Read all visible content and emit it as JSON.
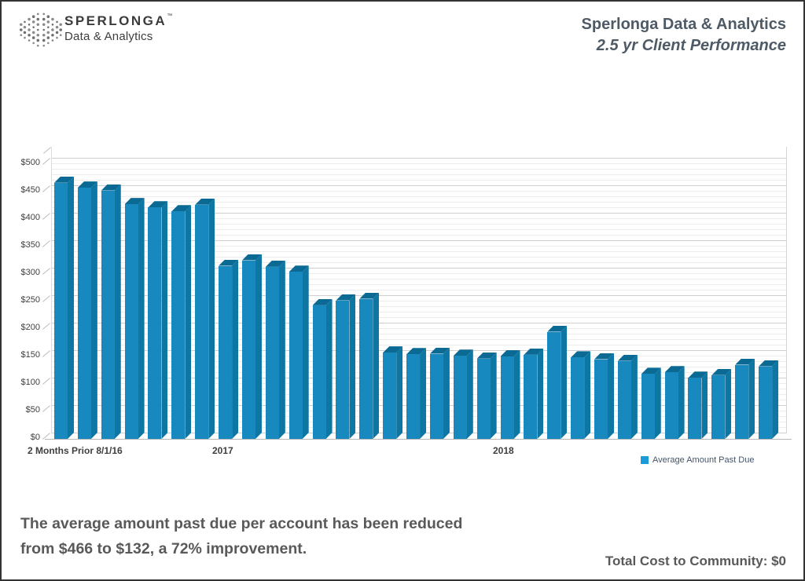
{
  "header": {
    "logo": {
      "brand": "SPERLONGA",
      "trademark": "™",
      "tagline": "Data & Analytics"
    },
    "title_line1": "Sperlonga Data & Analytics",
    "title_line2": "2.5 yr Client Performance"
  },
  "chart_data": {
    "type": "bar",
    "style": "3d",
    "title": "2.5 yr Client Performance",
    "xlabel": "",
    "ylabel": "",
    "ylim": [
      0,
      500
    ],
    "y_major_step": 50,
    "y_minor_step": 10,
    "grid": "horizontal, minor every $10, major every $50",
    "y_tick_labels": [
      "$0",
      "$50",
      "$100",
      "$150",
      "$200",
      "$250",
      "$300",
      "$350",
      "$400",
      "$450",
      "$500"
    ],
    "x_axis_group_labels": [
      "2 Months Prior 8/1/16",
      "2017",
      "2018"
    ],
    "legend_position": "bottom-right",
    "legend": [
      {
        "label": "Average Amount Past Due",
        "swatch_color": "#1B9CD9"
      }
    ],
    "bar_colors": {
      "front": "#1789BE",
      "top": "#0B6A94",
      "side": "#0E76A3"
    },
    "series": [
      {
        "name": "Average Amount Past Due",
        "values": [
          466,
          457,
          452,
          427,
          421,
          414,
          426,
          315,
          325,
          313,
          304,
          243,
          252,
          255,
          157,
          154,
          155,
          151,
          146,
          150,
          153,
          195,
          148,
          145,
          142,
          118,
          121,
          111,
          116,
          135,
          132
        ]
      }
    ]
  },
  "footer": {
    "summary_line1": "The average amount past due per account has been reduced",
    "summary_line2": "from $466 to $132, a 72% improvement.",
    "total_cost": "Total Cost to Community: $0"
  }
}
